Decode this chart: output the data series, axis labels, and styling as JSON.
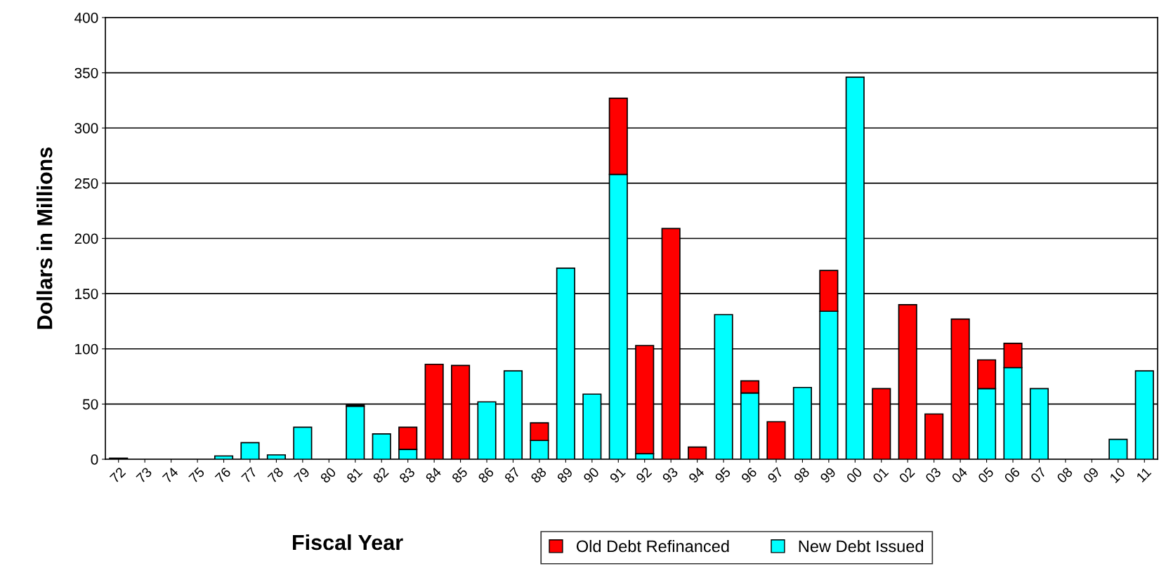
{
  "chart_data": {
    "type": "bar",
    "stacked": true,
    "xlabel": "Fiscal Year",
    "ylabel": "Dollars in Millions",
    "categories": [
      "72",
      "73",
      "74",
      "75",
      "76",
      "77",
      "78",
      "79",
      "80",
      "81",
      "82",
      "83",
      "84",
      "85",
      "86",
      "87",
      "88",
      "89",
      "90",
      "91",
      "92",
      "93",
      "94",
      "95",
      "96",
      "97",
      "98",
      "99",
      "00",
      "01",
      "02",
      "03",
      "04",
      "05",
      "06",
      "07",
      "08",
      "09",
      "10",
      "11"
    ],
    "series": [
      {
        "name": "New Debt Issued",
        "color": "#00ffff",
        "values": [
          1,
          null,
          null,
          null,
          3,
          15,
          4,
          29,
          null,
          48,
          23,
          9,
          null,
          null,
          52,
          80,
          17,
          173,
          59,
          258,
          5,
          null,
          null,
          131,
          60,
          null,
          65,
          134,
          346,
          null,
          null,
          null,
          null,
          64,
          83,
          64,
          null,
          null,
          18,
          80
        ]
      },
      {
        "name": "Old Debt Refinanced",
        "color": "#ff0000",
        "values": [
          null,
          null,
          null,
          null,
          null,
          null,
          null,
          null,
          null,
          1,
          null,
          20,
          86,
          85,
          null,
          null,
          16,
          null,
          null,
          69,
          98,
          209,
          11,
          null,
          11,
          34,
          null,
          37,
          null,
          64,
          140,
          41,
          127,
          26,
          22,
          null,
          null,
          null,
          null,
          null
        ]
      }
    ],
    "ylim": [
      0,
      400
    ],
    "yticks": [
      0,
      50,
      100,
      150,
      200,
      250,
      300,
      350,
      400
    ],
    "grid": "y",
    "legend": "bottom"
  }
}
